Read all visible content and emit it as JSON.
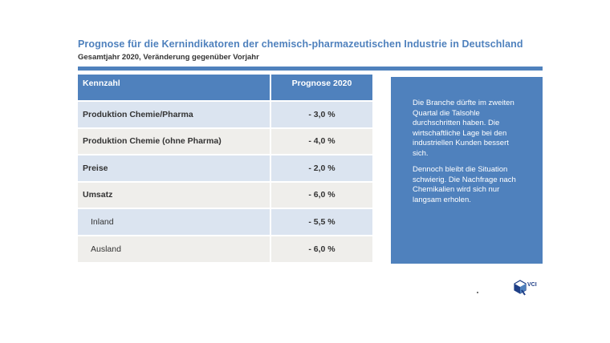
{
  "header": {
    "title": "Prognose für die Kernindikatoren der chemisch-pharmazeutischen Industrie in Deutschland",
    "subtitle": "Gesamtjahr 2020, Veränderung gegenüber Vorjahr"
  },
  "table": {
    "col_kennzahl": "Kennzahl",
    "col_prognose": "Prognose 2020",
    "rows": [
      {
        "label": "Produktion Chemie/Pharma",
        "value": "- 3,0 %"
      },
      {
        "label": "Produktion Chemie (ohne Pharma)",
        "value": "- 4,0 %"
      },
      {
        "label": "Preise",
        "value": "- 2,0 %"
      },
      {
        "label": "Umsatz",
        "value": "- 6,0 %"
      },
      {
        "label": "Inland",
        "value": "- 5,5 %"
      },
      {
        "label": "Ausland",
        "value": "- 6,0 %"
      }
    ]
  },
  "info": {
    "paragraph1": "Die Branche dürfte im zweiten Quartal die Talsohle durchschritten haben. Die wirtschaftliche Lage bei den industriellen Kunden bessert sich.",
    "paragraph2": "Dennoch bleibt die Situation schwierig. Die Nachfrage nach Chemikalien wird sich nur langsam erholen."
  },
  "logo": {
    "text": "VCI",
    "icon": "vci-logo-icon",
    "colors": {
      "primary": "#1f3f87",
      "accent": "#4f81bd"
    }
  },
  "colors": {
    "accent": "#4f81bd",
    "row_blue": "#dbe4f0",
    "row_gray": "#efeeeb",
    "text": "#333333"
  }
}
